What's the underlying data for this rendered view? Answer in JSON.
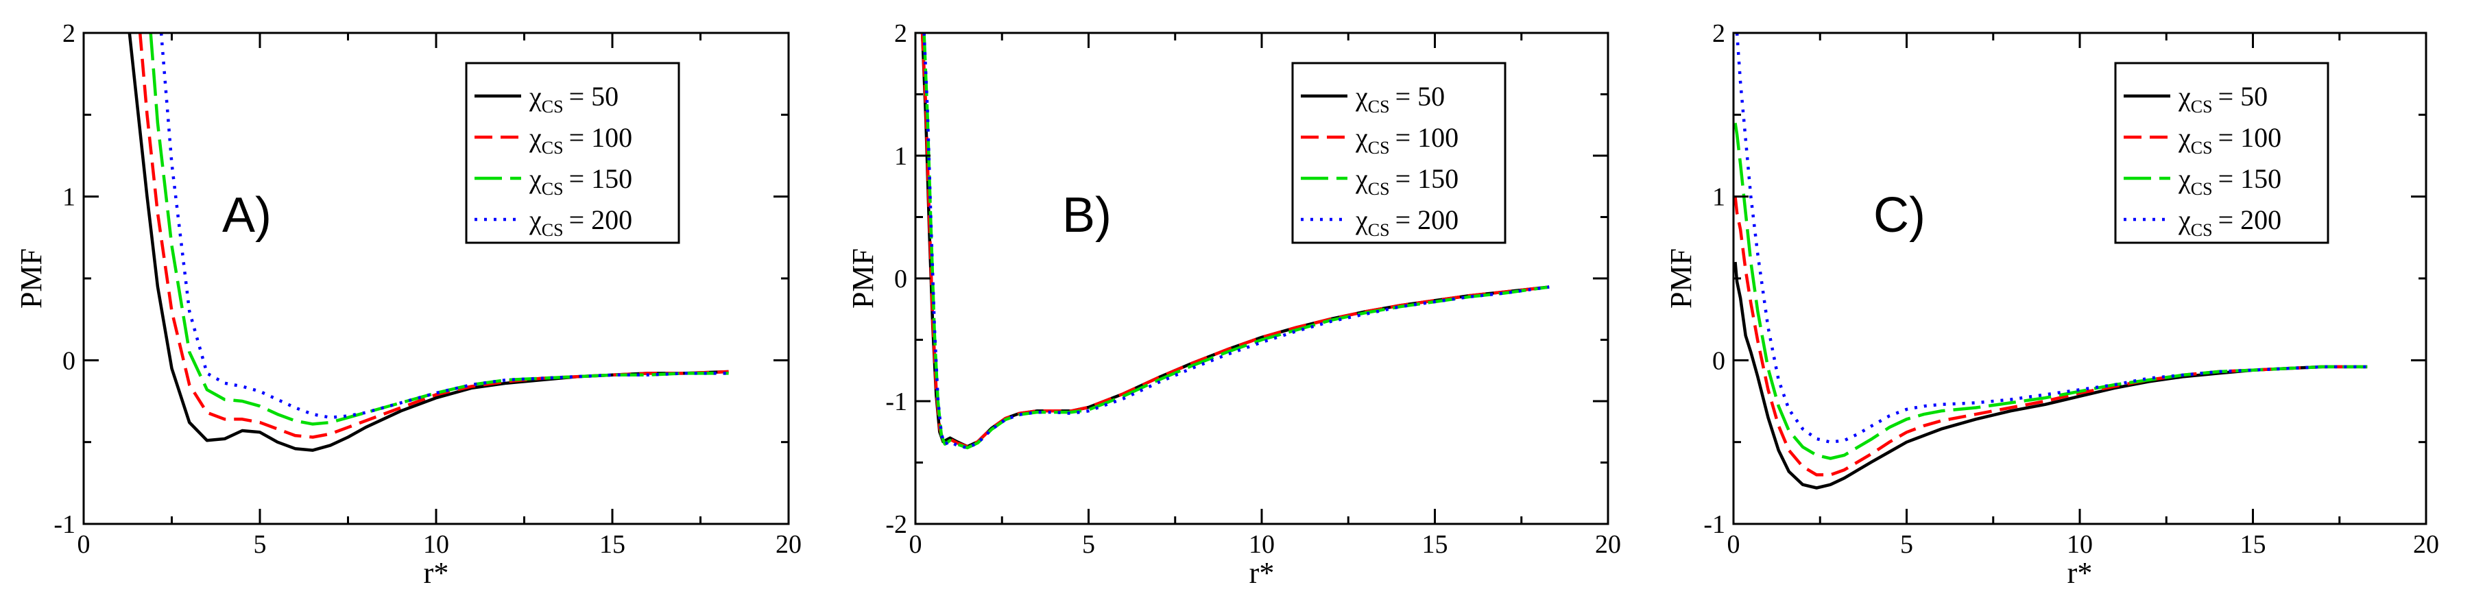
{
  "chart_data": [
    {
      "type": "line",
      "panel_label": "A)",
      "xlabel": "r*",
      "ylabel": "PMF",
      "xlim": [
        0,
        20
      ],
      "ylim": [
        -1,
        2
      ],
      "xticks": [
        0,
        5,
        10,
        15,
        20
      ],
      "yticks": [
        -1,
        0,
        1,
        2
      ],
      "legend_position": "top-right",
      "series": [
        {
          "symbol": "χ",
          "sub": "CS",
          "value_text": "=  50",
          "color": "#000000",
          "dash": "solid",
          "x": [
            1.3,
            1.5,
            1.8,
            2.1,
            2.5,
            3.0,
            3.5,
            4.0,
            4.5,
            5.0,
            5.5,
            6.0,
            6.5,
            7.0,
            7.5,
            8.0,
            9.0,
            10.0,
            11.0,
            12.0,
            13.0,
            14.0,
            15.0,
            16.0,
            17.0,
            18.3
          ],
          "y": [
            2.0,
            1.6,
            1.0,
            0.45,
            -0.05,
            -0.38,
            -0.49,
            -0.48,
            -0.43,
            -0.44,
            -0.5,
            -0.54,
            -0.55,
            -0.52,
            -0.47,
            -0.41,
            -0.31,
            -0.23,
            -0.17,
            -0.14,
            -0.12,
            -0.1,
            -0.09,
            -0.08,
            -0.08,
            -0.07
          ]
        },
        {
          "symbol": "χ",
          "sub": "CS",
          "value_text": "= 100",
          "color": "#ff0000",
          "dash": "dash",
          "x": [
            1.6,
            1.8,
            2.1,
            2.5,
            3.0,
            3.5,
            4.0,
            4.5,
            5.0,
            5.5,
            6.0,
            6.5,
            7.0,
            7.5,
            8.0,
            9.0,
            10.0,
            11.0,
            12.0,
            13.0,
            14.0,
            15.0,
            16.0,
            17.0,
            18.3
          ],
          "y": [
            2.0,
            1.5,
            0.9,
            0.3,
            -0.15,
            -0.32,
            -0.36,
            -0.36,
            -0.38,
            -0.42,
            -0.46,
            -0.47,
            -0.45,
            -0.41,
            -0.37,
            -0.29,
            -0.21,
            -0.16,
            -0.13,
            -0.11,
            -0.1,
            -0.09,
            -0.08,
            -0.08,
            -0.07
          ]
        },
        {
          "symbol": "χ",
          "sub": "CS",
          "value_text": "= 150",
          "color": "#00dd00",
          "dash": "longdash",
          "x": [
            1.9,
            2.1,
            2.5,
            3.0,
            3.5,
            4.0,
            4.5,
            5.0,
            5.5,
            6.0,
            6.5,
            7.0,
            7.5,
            8.0,
            9.0,
            10.0,
            11.0,
            12.0,
            13.0,
            14.0,
            15.0,
            16.0,
            17.0,
            18.3
          ],
          "y": [
            2.0,
            1.45,
            0.7,
            0.05,
            -0.18,
            -0.24,
            -0.25,
            -0.28,
            -0.33,
            -0.37,
            -0.39,
            -0.38,
            -0.35,
            -0.32,
            -0.26,
            -0.2,
            -0.15,
            -0.12,
            -0.11,
            -0.1,
            -0.09,
            -0.09,
            -0.08,
            -0.08
          ]
        },
        {
          "symbol": "χ",
          "sub": "CS",
          "value_text": "= 200",
          "color": "#0000ff",
          "dash": "dot",
          "x": [
            2.2,
            2.5,
            3.0,
            3.5,
            4.0,
            4.5,
            5.0,
            5.5,
            6.0,
            6.5,
            7.0,
            7.5,
            8.0,
            9.0,
            10.0,
            11.0,
            12.0,
            13.0,
            14.0,
            15.0,
            16.0,
            17.0,
            18.3
          ],
          "y": [
            2.0,
            1.2,
            0.3,
            -0.08,
            -0.14,
            -0.16,
            -0.19,
            -0.24,
            -0.29,
            -0.33,
            -0.35,
            -0.34,
            -0.32,
            -0.26,
            -0.2,
            -0.15,
            -0.12,
            -0.11,
            -0.1,
            -0.09,
            -0.09,
            -0.08,
            -0.08
          ]
        }
      ]
    },
    {
      "type": "line",
      "panel_label": "B)",
      "xlabel": "r*",
      "ylabel": "PMF",
      "xlim": [
        0,
        20
      ],
      "ylim": [
        -2,
        2
      ],
      "xticks": [
        0,
        5,
        10,
        15,
        20
      ],
      "yticks": [
        -2,
        -1,
        0,
        1,
        2
      ],
      "legend_position": "top-right",
      "series": [
        {
          "symbol": "χ",
          "sub": "CS",
          "value_text": "=  50",
          "color": "#000000",
          "dash": "solid",
          "x": [
            0.2,
            0.3,
            0.4,
            0.5,
            0.6,
            0.7,
            0.8,
            1.0,
            1.2,
            1.5,
            1.8,
            2.2,
            2.6,
            3.0,
            3.5,
            4.0,
            4.5,
            5.0,
            6.0,
            7.0,
            8.0,
            9.0,
            10.0,
            11.0,
            12.0,
            13.0,
            14.0,
            15.0,
            16.0,
            17.0,
            18.3
          ],
          "y": [
            2.0,
            1.3,
            0.4,
            -0.4,
            -0.95,
            -1.25,
            -1.33,
            -1.3,
            -1.33,
            -1.37,
            -1.33,
            -1.22,
            -1.14,
            -1.1,
            -1.08,
            -1.08,
            -1.08,
            -1.05,
            -0.94,
            -0.81,
            -0.69,
            -0.58,
            -0.48,
            -0.4,
            -0.33,
            -0.27,
            -0.22,
            -0.18,
            -0.14,
            -0.11,
            -0.07
          ]
        },
        {
          "symbol": "χ",
          "sub": "CS",
          "value_text": "= 100",
          "color": "#ff0000",
          "dash": "dash",
          "x": [
            0.2,
            0.3,
            0.4,
            0.5,
            0.6,
            0.7,
            0.8,
            1.0,
            1.2,
            1.5,
            1.8,
            2.2,
            2.6,
            3.0,
            3.5,
            4.0,
            4.5,
            5.0,
            6.0,
            7.0,
            8.0,
            9.0,
            10.0,
            11.0,
            12.0,
            13.0,
            14.0,
            15.0,
            16.0,
            17.0,
            18.3
          ],
          "y": [
            2.0,
            1.4,
            0.5,
            -0.35,
            -0.9,
            -1.22,
            -1.32,
            -1.31,
            -1.34,
            -1.37,
            -1.33,
            -1.22,
            -1.14,
            -1.1,
            -1.08,
            -1.08,
            -1.08,
            -1.05,
            -0.94,
            -0.81,
            -0.69,
            -0.58,
            -0.48,
            -0.4,
            -0.33,
            -0.27,
            -0.22,
            -0.18,
            -0.14,
            -0.11,
            -0.07
          ]
        },
        {
          "symbol": "χ",
          "sub": "CS",
          "value_text": "= 150",
          "color": "#00dd00",
          "dash": "longdash",
          "x": [
            0.25,
            0.35,
            0.45,
            0.55,
            0.65,
            0.75,
            0.85,
            1.0,
            1.2,
            1.5,
            1.8,
            2.2,
            2.6,
            3.0,
            3.5,
            4.0,
            4.5,
            5.0,
            6.0,
            7.0,
            8.0,
            9.0,
            10.0,
            11.0,
            12.0,
            13.0,
            14.0,
            15.0,
            16.0,
            17.0,
            18.3
          ],
          "y": [
            2.0,
            1.3,
            0.4,
            -0.45,
            -1.0,
            -1.28,
            -1.35,
            -1.32,
            -1.35,
            -1.38,
            -1.34,
            -1.23,
            -1.15,
            -1.11,
            -1.09,
            -1.09,
            -1.09,
            -1.07,
            -0.96,
            -0.83,
            -0.71,
            -0.6,
            -0.5,
            -0.42,
            -0.34,
            -0.28,
            -0.23,
            -0.19,
            -0.15,
            -0.12,
            -0.07
          ]
        },
        {
          "symbol": "χ",
          "sub": "CS",
          "value_text": "= 200",
          "color": "#0000ff",
          "dash": "dot",
          "x": [
            0.25,
            0.35,
            0.45,
            0.55,
            0.65,
            0.75,
            0.85,
            1.0,
            1.2,
            1.5,
            1.8,
            2.2,
            2.6,
            3.0,
            3.5,
            4.0,
            4.5,
            5.0,
            6.0,
            7.0,
            8.0,
            9.0,
            10.0,
            11.0,
            12.0,
            13.0,
            14.0,
            15.0,
            16.0,
            17.0,
            18.3
          ],
          "y": [
            2.0,
            1.35,
            0.45,
            -0.4,
            -0.98,
            -1.27,
            -1.35,
            -1.33,
            -1.36,
            -1.38,
            -1.34,
            -1.23,
            -1.15,
            -1.11,
            -1.09,
            -1.09,
            -1.1,
            -1.08,
            -0.98,
            -0.85,
            -0.73,
            -0.62,
            -0.52,
            -0.43,
            -0.35,
            -0.29,
            -0.23,
            -0.19,
            -0.15,
            -0.12,
            -0.07
          ]
        }
      ]
    },
    {
      "type": "line",
      "panel_label": "C)",
      "xlabel": "r*",
      "ylabel": "PMF",
      "xlim": [
        0,
        20
      ],
      "ylim": [
        -1,
        2
      ],
      "xticks": [
        0,
        5,
        10,
        15,
        20
      ],
      "yticks": [
        -1,
        0,
        1,
        2
      ],
      "legend_position": "top-right",
      "series": [
        {
          "symbol": "χ",
          "sub": "CS",
          "value_text": "=  50",
          "color": "#000000",
          "dash": "solid",
          "x": [
            0.05,
            0.1,
            0.2,
            0.35,
            0.5,
            0.7,
            1.0,
            1.3,
            1.6,
            2.0,
            2.4,
            2.8,
            3.2,
            3.6,
            4.0,
            4.5,
            5.0,
            5.5,
            6.0,
            7.0,
            8.0,
            9.0,
            10.0,
            11.0,
            12.0,
            13.0,
            14.0,
            15.0,
            16.0,
            17.0,
            18.3
          ],
          "y": [
            0.6,
            0.48,
            0.38,
            0.15,
            0.05,
            -0.1,
            -0.35,
            -0.55,
            -0.68,
            -0.76,
            -0.78,
            -0.76,
            -0.72,
            -0.67,
            -0.62,
            -0.56,
            -0.5,
            -0.46,
            -0.42,
            -0.36,
            -0.31,
            -0.27,
            -0.22,
            -0.17,
            -0.13,
            -0.1,
            -0.08,
            -0.06,
            -0.05,
            -0.04,
            -0.04
          ]
        },
        {
          "symbol": "χ",
          "sub": "CS",
          "value_text": "= 100",
          "color": "#ff0000",
          "dash": "dash",
          "x": [
            0.05,
            0.1,
            0.2,
            0.35,
            0.5,
            0.7,
            1.0,
            1.3,
            1.6,
            2.0,
            2.4,
            2.8,
            3.2,
            3.6,
            4.0,
            4.5,
            5.0,
            5.5,
            6.0,
            7.0,
            8.0,
            9.0,
            10.0,
            11.0,
            12.0,
            13.0,
            14.0,
            15.0,
            16.0,
            17.0,
            18.3
          ],
          "y": [
            1.0,
            0.9,
            0.8,
            0.55,
            0.35,
            0.12,
            -0.18,
            -0.4,
            -0.55,
            -0.65,
            -0.7,
            -0.7,
            -0.67,
            -0.62,
            -0.57,
            -0.5,
            -0.44,
            -0.4,
            -0.37,
            -0.33,
            -0.29,
            -0.25,
            -0.2,
            -0.16,
            -0.12,
            -0.09,
            -0.07,
            -0.06,
            -0.05,
            -0.04,
            -0.04
          ]
        },
        {
          "symbol": "χ",
          "sub": "CS",
          "value_text": "= 150",
          "color": "#00dd00",
          "dash": "longdash",
          "x": [
            0.05,
            0.1,
            0.2,
            0.35,
            0.5,
            0.7,
            1.0,
            1.3,
            1.6,
            2.0,
            2.4,
            2.8,
            3.2,
            3.6,
            4.0,
            4.5,
            5.0,
            5.5,
            6.0,
            7.0,
            8.0,
            9.0,
            10.0,
            11.0,
            12.0,
            13.0,
            14.0,
            15.0,
            16.0,
            17.0,
            18.3
          ],
          "y": [
            1.45,
            1.38,
            1.2,
            0.9,
            0.6,
            0.3,
            -0.05,
            -0.28,
            -0.43,
            -0.53,
            -0.58,
            -0.6,
            -0.58,
            -0.53,
            -0.48,
            -0.41,
            -0.36,
            -0.33,
            -0.31,
            -0.29,
            -0.26,
            -0.23,
            -0.19,
            -0.15,
            -0.12,
            -0.09,
            -0.07,
            -0.06,
            -0.05,
            -0.04,
            -0.04
          ]
        },
        {
          "symbol": "χ",
          "sub": "CS",
          "value_text": "= 200",
          "color": "#0000ff",
          "dash": "dot",
          "x": [
            0.1,
            0.2,
            0.35,
            0.5,
            0.7,
            1.0,
            1.3,
            1.6,
            2.0,
            2.4,
            2.8,
            3.2,
            3.6,
            4.0,
            4.5,
            5.0,
            5.5,
            6.0,
            7.0,
            8.0,
            9.0,
            10.0,
            11.0,
            12.0,
            13.0,
            14.0,
            15.0,
            16.0,
            17.0,
            18.3
          ],
          "y": [
            2.0,
            1.7,
            1.35,
            1.0,
            0.65,
            0.2,
            -0.12,
            -0.3,
            -0.42,
            -0.48,
            -0.5,
            -0.49,
            -0.45,
            -0.4,
            -0.34,
            -0.3,
            -0.28,
            -0.27,
            -0.26,
            -0.24,
            -0.21,
            -0.18,
            -0.15,
            -0.11,
            -0.09,
            -0.07,
            -0.06,
            -0.05,
            -0.04,
            -0.04
          ]
        }
      ]
    }
  ]
}
